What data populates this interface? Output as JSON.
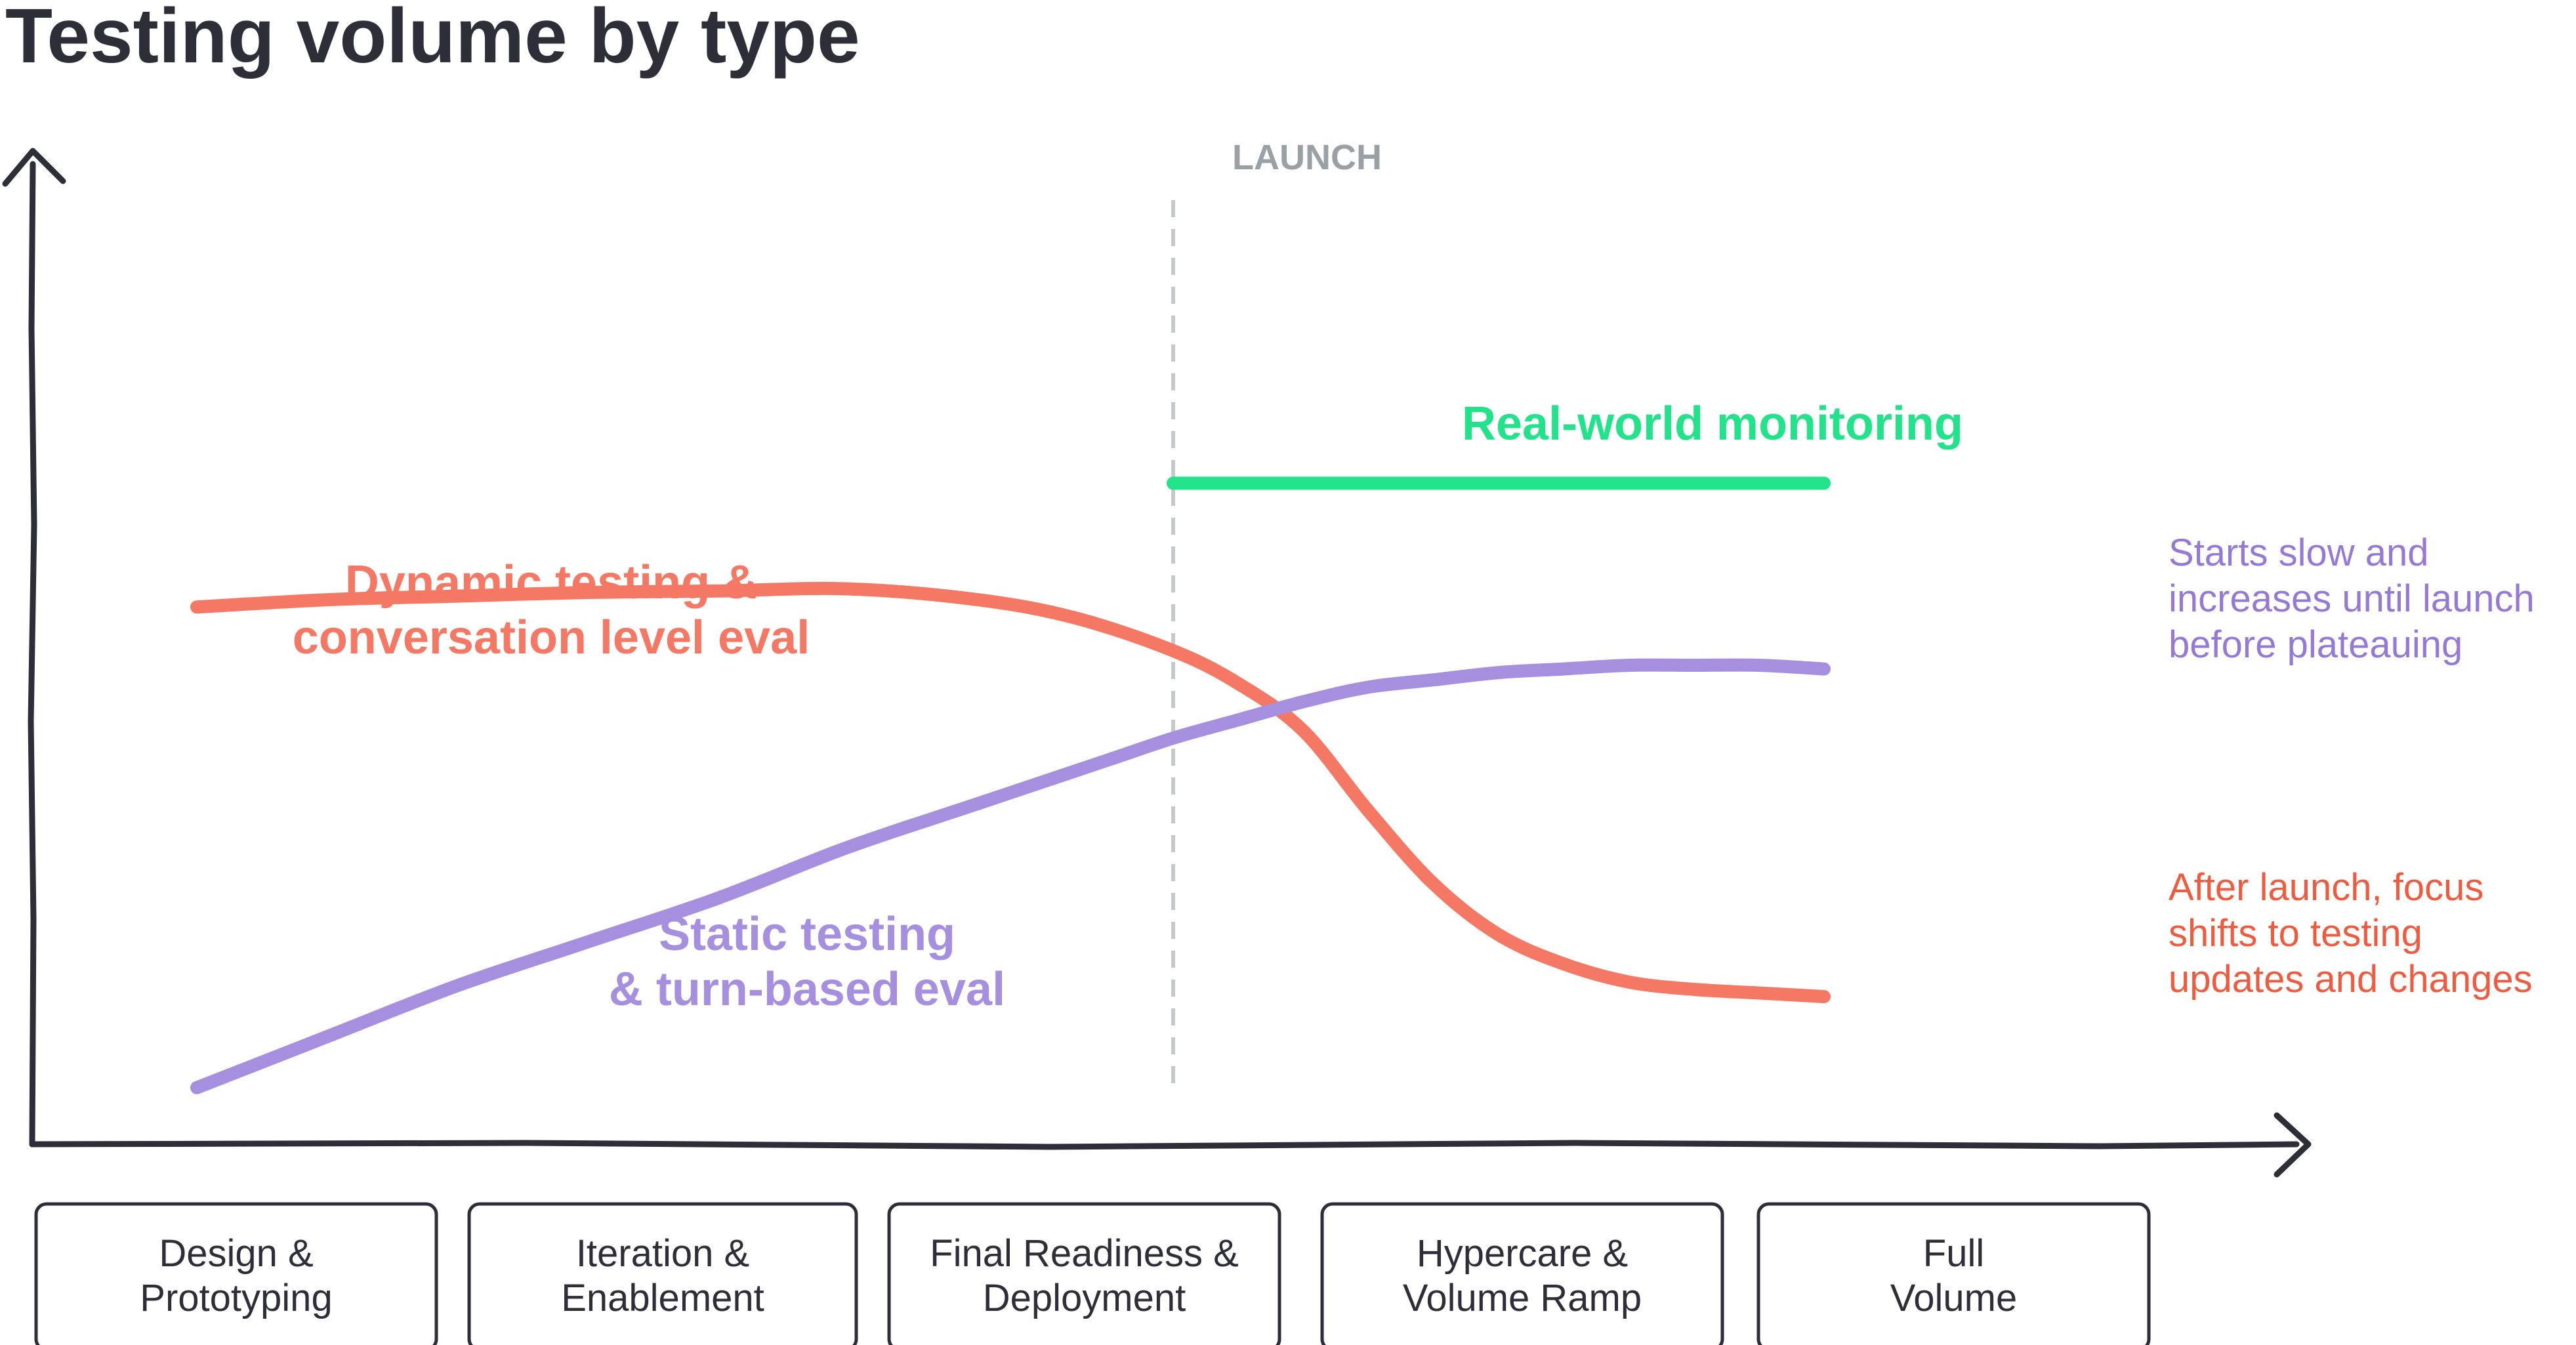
{
  "chart_data": {
    "type": "line",
    "title": "Testing volume by type",
    "xlabel": "",
    "ylabel": "",
    "grid": false,
    "x_categories": [
      [
        "Design &",
        "Prototyping"
      ],
      [
        "Iteration &",
        "Enablement"
      ],
      [
        "Final Readiness &",
        "Deployment"
      ],
      [
        "Hypercare &",
        "Volume Ramp"
      ],
      [
        "Full",
        "Volume"
      ]
    ],
    "annotation": {
      "text": "LAUNCH",
      "x": 3.0
    },
    "series": [
      {
        "label_lines": [
          "Dynamic testing &",
          "conversation level eval"
        ],
        "note_lines": [
          "After launch, focus",
          "shifts to testing",
          "updates and changes"
        ],
        "color": "#f47864",
        "note_color": "#ef5b3f",
        "x": [
          0.0,
          0.4,
          0.8,
          1.2,
          1.6,
          2.0,
          2.4,
          2.7,
          3.0,
          3.2,
          3.4,
          3.6,
          3.8,
          4.0,
          4.2,
          4.4,
          4.6,
          4.8,
          5.0
        ],
        "y": [
          68,
          69,
          69.5,
          70,
          70.2,
          70.5,
          69,
          66.5,
          62,
          57.5,
          51,
          40,
          30,
          23,
          19,
          16.5,
          15.5,
          15,
          14.5
        ]
      },
      {
        "label_lines": [
          "Static testing",
          "& turn-based eval"
        ],
        "note_lines": [
          "Starts slow and",
          "increases until launch",
          "before plateauing"
        ],
        "color": "#a68fde",
        "note_color": "#9579d6",
        "x": [
          0.0,
          0.4,
          0.8,
          1.2,
          1.6,
          2.0,
          2.4,
          2.8,
          3.0,
          3.2,
          3.4,
          3.6,
          3.8,
          4.0,
          4.2,
          4.4,
          4.6,
          4.8,
          5.0
        ],
        "y": [
          2,
          9,
          16,
          22,
          28,
          35,
          41,
          47,
          50,
          52.5,
          55,
          57,
          58,
          59,
          59.5,
          60,
          60,
          60,
          59.5
        ]
      },
      {
        "label_lines": [
          "Real-world monitoring"
        ],
        "note_lines": [],
        "color": "#22e38a",
        "note_color": "#22e38a",
        "x": [
          3.0,
          3.5,
          4.0,
          4.5,
          5.0
        ],
        "y": [
          85,
          85,
          85,
          85,
          85
        ]
      }
    ]
  }
}
